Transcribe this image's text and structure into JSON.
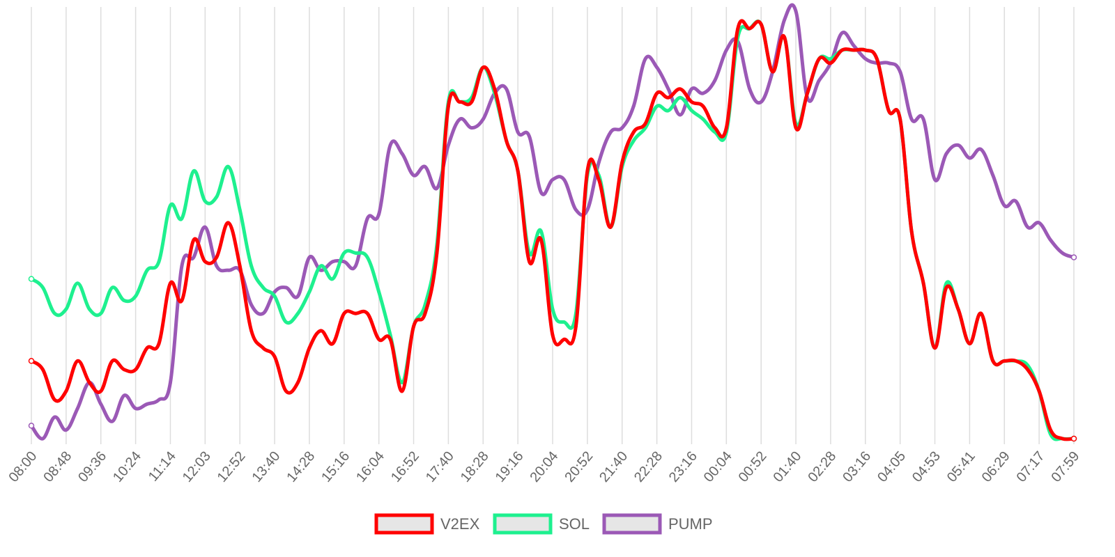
{
  "chart_data": {
    "type": "line",
    "title": "",
    "xlabel": "",
    "ylabel": "",
    "x_tick_labels": [
      "08:00",
      "08:48",
      "09:36",
      "10:24",
      "11:14",
      "12:03",
      "12:52",
      "13:40",
      "14:28",
      "15:16",
      "16:04",
      "16:52",
      "17:40",
      "18:28",
      "19:16",
      "20:04",
      "20:52",
      "21:40",
      "22:28",
      "23:16",
      "00:04",
      "00:52",
      "01:40",
      "02:28",
      "03:16",
      "04:05",
      "04:53",
      "05:41",
      "06:29",
      "07:17",
      "07:59"
    ],
    "y_axis_visible": false,
    "ylim": [
      0,
      1
    ],
    "grid": "vertical",
    "legend_position": "bottom",
    "x": [
      0,
      0.33,
      0.67,
      1,
      1.33,
      1.67,
      2,
      2.33,
      2.67,
      3,
      3.33,
      3.67,
      4,
      4.33,
      4.67,
      5,
      5.33,
      5.67,
      6,
      6.33,
      6.67,
      7,
      7.33,
      7.67,
      8,
      8.33,
      8.67,
      9,
      9.33,
      9.67,
      10,
      10.33,
      10.67,
      11,
      11.33,
      11.67,
      12,
      12.33,
      12.67,
      13,
      13.33,
      13.67,
      14,
      14.33,
      14.67,
      15,
      15.33,
      15.67,
      16,
      16.33,
      16.67,
      17,
      17.33,
      17.67,
      18,
      18.33,
      18.67,
      19,
      19.33,
      19.67,
      20,
      20.33,
      20.67,
      21,
      21.33,
      21.67,
      22,
      22.33,
      22.67,
      23,
      23.33,
      23.67,
      24,
      24.33,
      24.67,
      25,
      25.33,
      25.67,
      26,
      26.33,
      26.67,
      27,
      27.33,
      27.67,
      28,
      28.33,
      28.67,
      29,
      29.33,
      29.67,
      30
    ],
    "series": [
      {
        "name": "V2EX",
        "color": "#ff0000",
        "values": [
          0.18,
          0.16,
          0.09,
          0.11,
          0.18,
          0.13,
          0.11,
          0.18,
          0.16,
          0.16,
          0.21,
          0.22,
          0.36,
          0.32,
          0.46,
          0.41,
          0.42,
          0.5,
          0.4,
          0.25,
          0.21,
          0.19,
          0.11,
          0.13,
          0.21,
          0.25,
          0.22,
          0.29,
          0.29,
          0.29,
          0.23,
          0.23,
          0.11,
          0.26,
          0.29,
          0.43,
          0.77,
          0.78,
          0.78,
          0.86,
          0.81,
          0.69,
          0.62,
          0.41,
          0.46,
          0.24,
          0.23,
          0.26,
          0.62,
          0.6,
          0.49,
          0.64,
          0.71,
          0.73,
          0.8,
          0.79,
          0.81,
          0.78,
          0.77,
          0.72,
          0.72,
          0.95,
          0.95,
          0.96,
          0.85,
          0.93,
          0.72,
          0.8,
          0.88,
          0.87,
          0.9,
          0.9,
          0.9,
          0.88,
          0.76,
          0.74,
          0.48,
          0.36,
          0.21,
          0.35,
          0.3,
          0.22,
          0.29,
          0.18,
          0.18,
          0.18,
          0.16,
          0.11,
          0.02,
          0.0,
          0.0
        ]
      },
      {
        "name": "SOL",
        "color": "#1ef08f",
        "values": [
          0.37,
          0.35,
          0.29,
          0.3,
          0.36,
          0.3,
          0.29,
          0.35,
          0.32,
          0.33,
          0.39,
          0.41,
          0.54,
          0.51,
          0.62,
          0.55,
          0.56,
          0.63,
          0.53,
          0.4,
          0.35,
          0.33,
          0.27,
          0.29,
          0.34,
          0.4,
          0.37,
          0.43,
          0.43,
          0.42,
          0.34,
          0.24,
          0.13,
          0.26,
          0.31,
          0.45,
          0.78,
          0.78,
          0.79,
          0.86,
          0.8,
          0.69,
          0.62,
          0.43,
          0.48,
          0.3,
          0.27,
          0.29,
          0.61,
          0.61,
          0.49,
          0.63,
          0.69,
          0.72,
          0.77,
          0.76,
          0.79,
          0.76,
          0.74,
          0.71,
          0.71,
          0.93,
          0.95,
          0.96,
          0.85,
          0.93,
          0.73,
          0.8,
          0.88,
          0.88,
          0.9,
          0.9,
          0.9,
          0.88,
          0.76,
          0.74,
          0.48,
          0.36,
          0.21,
          0.36,
          0.3,
          0.22,
          0.29,
          0.18,
          0.18,
          0.18,
          0.17,
          0.11,
          0.01,
          0.0,
          0.0
        ]
      },
      {
        "name": "PUMP",
        "color": "#9b59b6",
        "values": [
          0.03,
          0.0,
          0.05,
          0.02,
          0.07,
          0.13,
          0.08,
          0.04,
          0.1,
          0.07,
          0.08,
          0.09,
          0.13,
          0.4,
          0.42,
          0.49,
          0.4,
          0.39,
          0.39,
          0.31,
          0.29,
          0.34,
          0.35,
          0.33,
          0.42,
          0.39,
          0.41,
          0.41,
          0.4,
          0.51,
          0.52,
          0.68,
          0.66,
          0.61,
          0.63,
          0.58,
          0.68,
          0.74,
          0.72,
          0.74,
          0.8,
          0.81,
          0.71,
          0.7,
          0.57,
          0.6,
          0.6,
          0.53,
          0.53,
          0.64,
          0.71,
          0.72,
          0.77,
          0.88,
          0.86,
          0.81,
          0.75,
          0.81,
          0.8,
          0.83,
          0.9,
          0.92,
          0.81,
          0.78,
          0.85,
          0.97,
          0.99,
          0.79,
          0.83,
          0.87,
          0.94,
          0.91,
          0.88,
          0.87,
          0.87,
          0.85,
          0.74,
          0.74,
          0.6,
          0.66,
          0.68,
          0.65,
          0.67,
          0.61,
          0.54,
          0.55,
          0.49,
          0.5,
          0.46,
          0.43,
          0.42
        ]
      }
    ]
  }
}
